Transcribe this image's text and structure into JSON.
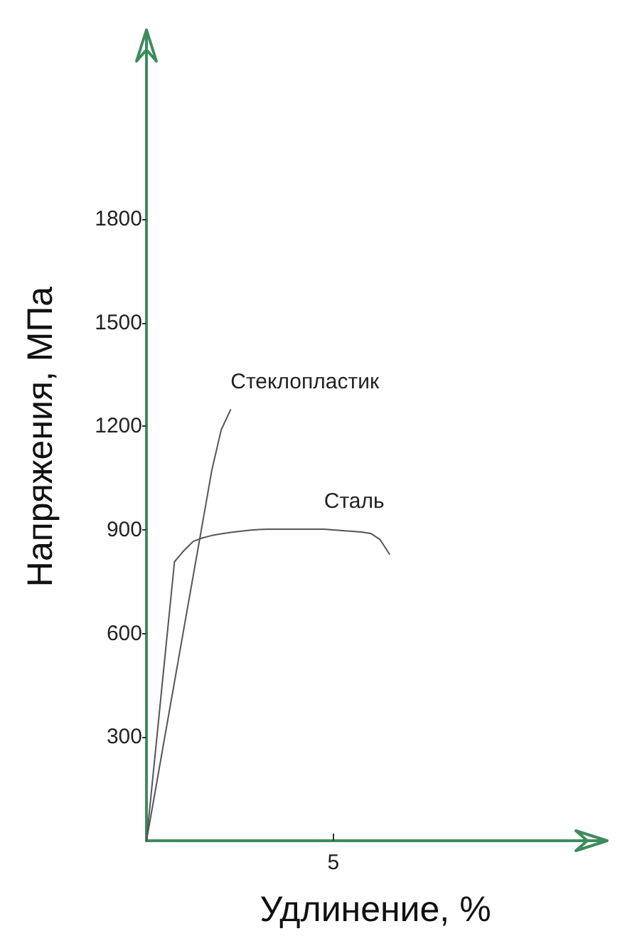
{
  "chart_data": {
    "type": "line",
    "xlabel": "Удлинение, %",
    "ylabel": "Напряжения, МПа",
    "categories": [
      null,
      null,
      null,
      null,
      null,
      null,
      null,
      null,
      null,
      null,
      null,
      null,
      null,
      null,
      null,
      null,
      null,
      null,
      null,
      null,
      "5",
      null,
      null,
      null,
      null,
      null,
      null,
      null,
      null,
      null,
      null,
      null,
      null,
      null,
      null,
      null,
      null,
      null,
      null,
      null,
      null,
      null,
      null,
      null,
      null,
      null,
      null,
      null,
      null,
      null
    ],
    "ylim": [
      0,
      2340
    ],
    "yticks": [
      300,
      600,
      900,
      1200,
      1500,
      1800
    ],
    "grid": false,
    "legend": false,
    "marker": "none",
    "line_style": "solid",
    "series": [
      {
        "name": "Стеклопластик",
        "color": "#555555",
        "values": [
          0,
          153,
          307,
          460,
          614,
          767,
          920,
          1074,
          1190,
          1248,
          null,
          null,
          null,
          null,
          null,
          null,
          null,
          null,
          null,
          null,
          null,
          null,
          null,
          null,
          null,
          null,
          null,
          null,
          null,
          null,
          null,
          null,
          null,
          null,
          null,
          null,
          null,
          null,
          null,
          null,
          null,
          null,
          null,
          null,
          null,
          null,
          null,
          null,
          null,
          null
        ]
      },
      {
        "name": "Сталь",
        "color": "#555555",
        "values": [
          0,
          269,
          539,
          808,
          840,
          867,
          877,
          884,
          889,
          893,
          896,
          899,
          901,
          902,
          902,
          902,
          902,
          902,
          902,
          902,
          900,
          898,
          896,
          894,
          890,
          872,
          830,
          null,
          null,
          null,
          null,
          null,
          null,
          null,
          null,
          null,
          null,
          null,
          null,
          null,
          null,
          null,
          null,
          null,
          null,
          null,
          null,
          null,
          null,
          null
        ]
      }
    ]
  }
}
